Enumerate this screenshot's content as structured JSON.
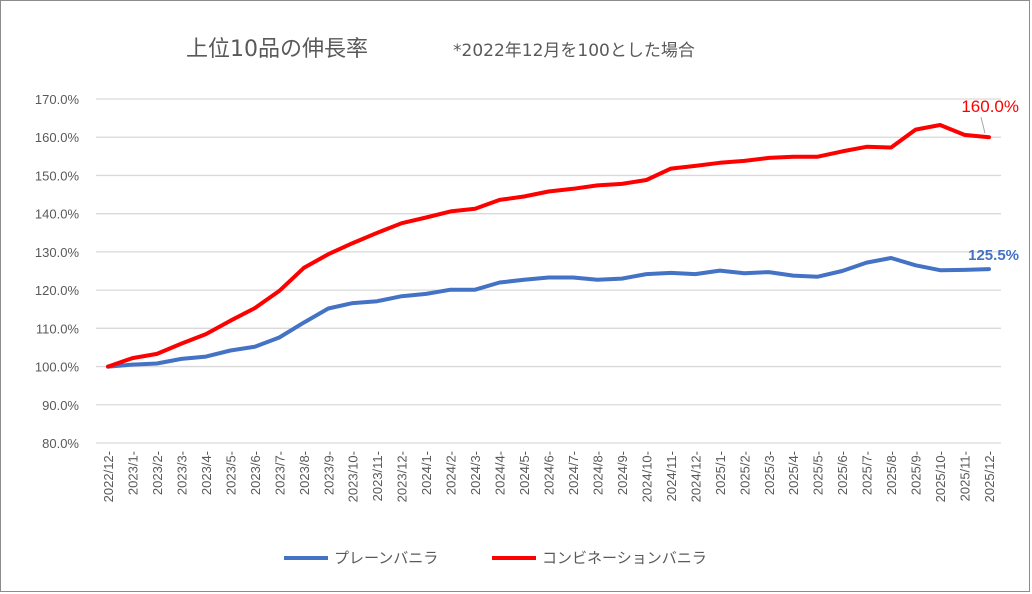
{
  "chart_data": {
    "type": "line",
    "title": "上位10品の伸長率",
    "subtitle": "*2022年12月を100とした場合",
    "xlabel": "",
    "ylabel": "",
    "ylim": [
      80,
      170
    ],
    "yticks": [
      "80.0%",
      "90.0%",
      "100.0%",
      "110.0%",
      "120.0%",
      "130.0%",
      "140.0%",
      "150.0%",
      "160.0%",
      "170.0%"
    ],
    "grid": true,
    "legend_position": "bottom",
    "categories": [
      "2022/12-",
      "2023/1-",
      "2023/2-",
      "2023/3-",
      "2023/4-",
      "2023/5-",
      "2023/6-",
      "2023/7-",
      "2023/8-",
      "2023/9-",
      "2023/10-",
      "2023/11-",
      "2023/12-",
      "2024/1-",
      "2024/2-",
      "2024/3-",
      "2024/4-",
      "2024/5-",
      "2024/6-",
      "2024/7-",
      "2024/8-",
      "2024/9-",
      "2024/10-",
      "2024/11-",
      "2024/12-",
      "2025/1-",
      "2025/2-",
      "2025/3-",
      "2025/4-",
      "2025/5-",
      "2025/6-",
      "2025/7-",
      "2025/8-",
      "2025/9-",
      "2025/10-",
      "2025/11-",
      "2025/12-"
    ],
    "series": [
      {
        "name": "プレーンバニラ",
        "color": "#4472c4",
        "end_label": "125.5%",
        "values": [
          100,
          100.5,
          100.8,
          102,
          102.6,
          104.2,
          105.2,
          107.6,
          111.5,
          115.2,
          116.6,
          117.1,
          118.4,
          119,
          120.1,
          120.1,
          122,
          122.7,
          123.3,
          123.3,
          122.7,
          123,
          124.2,
          124.5,
          124.2,
          125.1,
          124.4,
          124.7,
          123.8,
          123.5,
          125,
          127.2,
          128.4,
          126.5,
          125.2,
          125.3,
          125.5
        ]
      },
      {
        "name": "コンビネーションバニラ",
        "color": "#ff0000",
        "end_label": "160.0%",
        "values": [
          100,
          102.2,
          103.3,
          106,
          108.5,
          112,
          115.3,
          119.8,
          125.8,
          129.4,
          132.3,
          135,
          137.5,
          139,
          140.6,
          141.3,
          143.6,
          144.5,
          145.8,
          146.5,
          147.4,
          147.8,
          148.8,
          151.8,
          152.5,
          153.3,
          153.8,
          154.6,
          154.9,
          154.9,
          156.3,
          157.5,
          157.3,
          162,
          163.2,
          160.6,
          160.0
        ]
      }
    ]
  }
}
